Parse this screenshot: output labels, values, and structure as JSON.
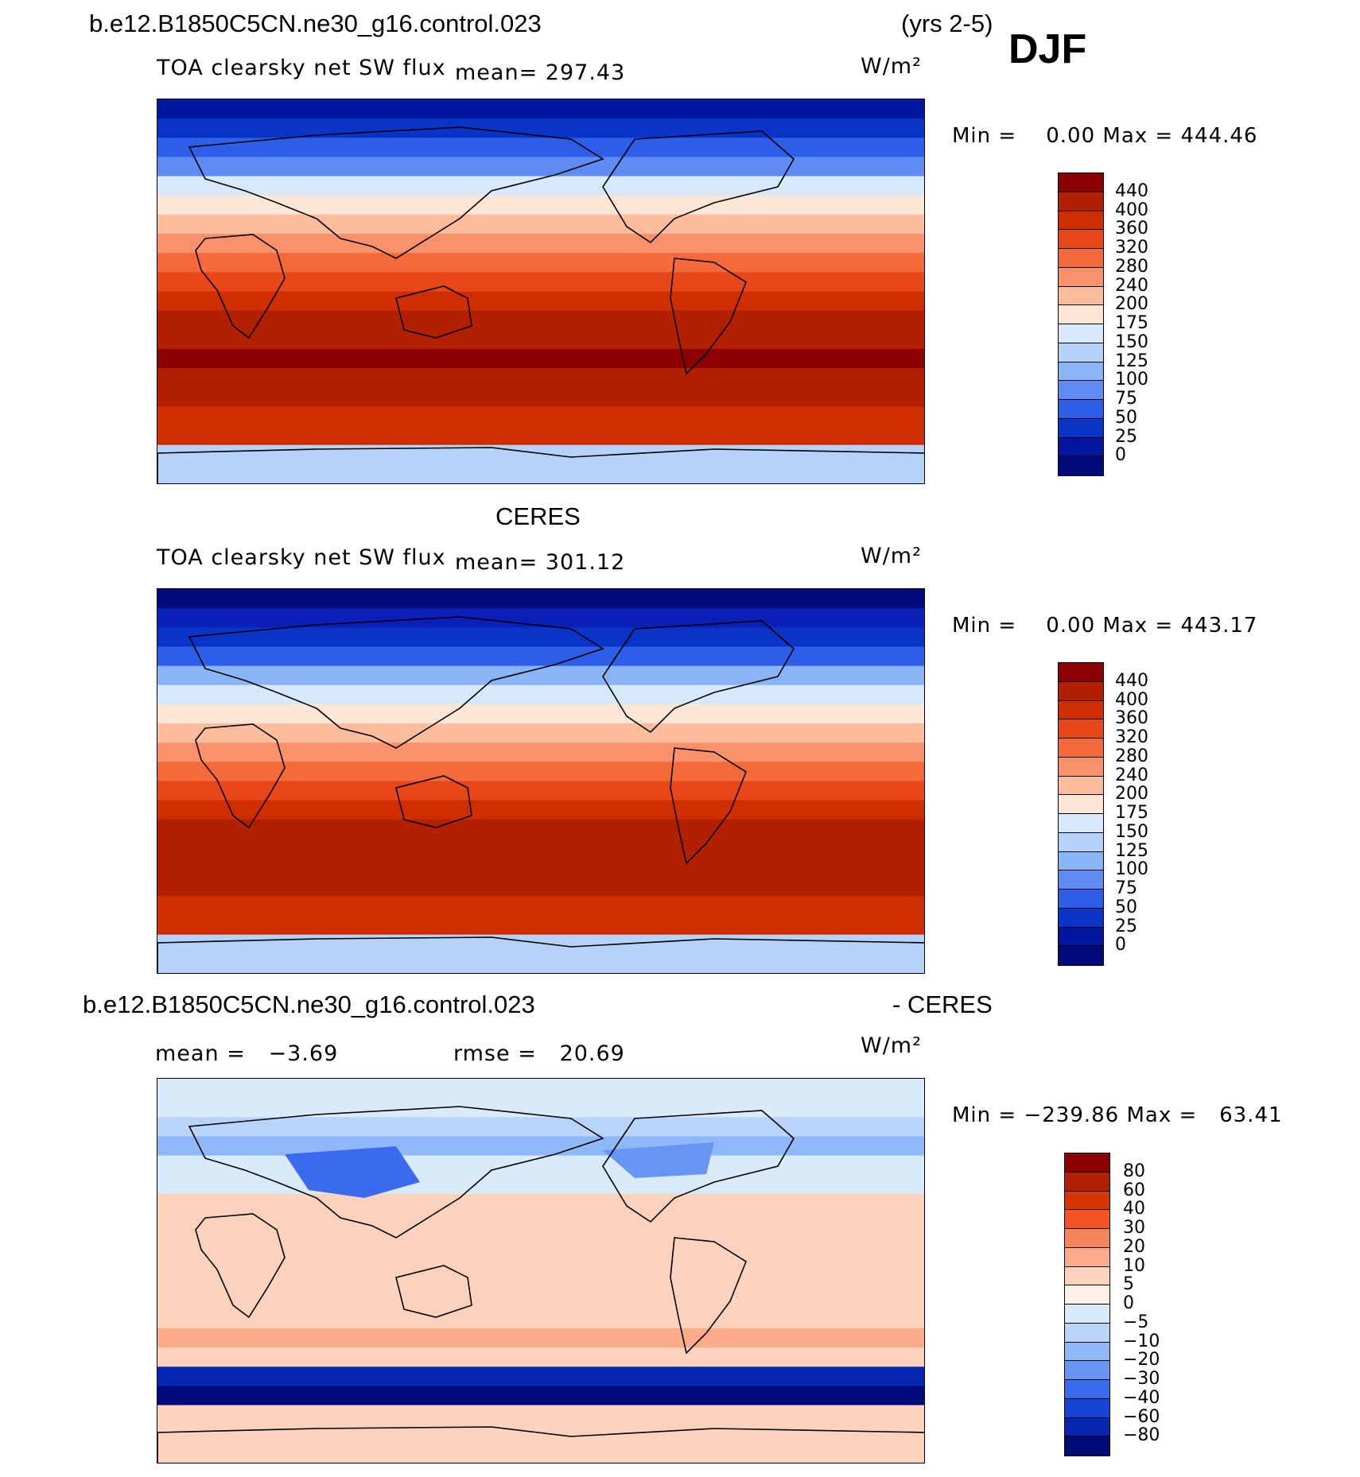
{
  "header": {
    "case": "b.e12.B1850C5CN.ne30_g16.control.023",
    "years": "(yrs 2-5)",
    "season": "DJF"
  },
  "panels": [
    {
      "id": "model",
      "title": "",
      "variable": "TOA clearsky net SW flux",
      "mean_label": "mean=",
      "mean": "297.43",
      "units": "W/m²",
      "min_label": "Min =",
      "min": "0.00",
      "max_label": "Max =",
      "max": "444.46"
    },
    {
      "id": "obs",
      "title": "CERES",
      "variable": "TOA clearsky net SW flux",
      "mean_label": "mean=",
      "mean": "301.12",
      "units": "W/m²",
      "min_label": "Min =",
      "min": "0.00",
      "max_label": "Max =",
      "max": "443.17"
    },
    {
      "id": "diff",
      "title": "b.e12.B1850C5CN.ne30_g16.control.023",
      "title_right": "- CERES",
      "mean_label": "mean =",
      "mean": "−3.69",
      "rmse_label": "rmse =",
      "rmse": "20.69",
      "units": "W/m²",
      "min_label": "Min =",
      "min": "−239.86",
      "max_label": "Max =",
      "max": "63.41"
    }
  ],
  "colorbars": {
    "abs": {
      "levels": [
        "440",
        "400",
        "360",
        "320",
        "280",
        "240",
        "200",
        "175",
        "150",
        "125",
        "100",
        "75",
        "50",
        "25",
        "0"
      ],
      "colors": [
        "#8b0000",
        "#b22000",
        "#cf2f00",
        "#e8471a",
        "#f46a3a",
        "#f9916a",
        "#fdbd9c",
        "#fee6d6",
        "#d6e8fa",
        "#b4d2fa",
        "#8ab4f8",
        "#5e8cf3",
        "#2c5ee8",
        "#0a33c8",
        "#0018a0",
        "#000a7a"
      ]
    },
    "diff": {
      "levels": [
        "80",
        "60",
        "40",
        "30",
        "20",
        "10",
        "5",
        "0",
        "−5",
        "−10",
        "−20",
        "−30",
        "−40",
        "−60",
        "−80"
      ],
      "colors": [
        "#8b0000",
        "#b22000",
        "#d93500",
        "#f25524",
        "#f7845a",
        "#fbab8a",
        "#fdd2bc",
        "#fff0e6",
        "#d9ebfb",
        "#b8d4fa",
        "#8fb8f8",
        "#6695f4",
        "#3b6bec",
        "#1544d6",
        "#0426b0",
        "#000a7a"
      ]
    }
  }
}
